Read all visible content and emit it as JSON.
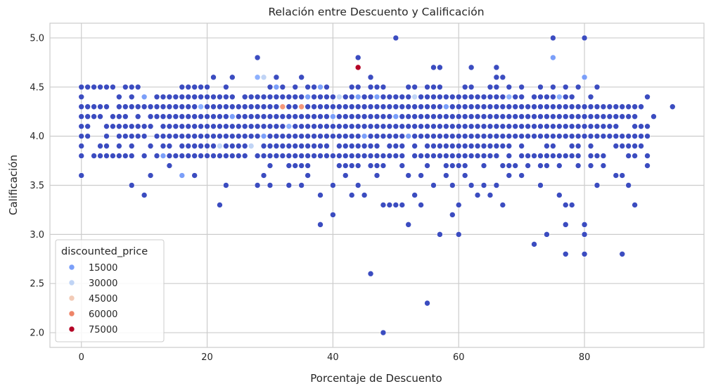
{
  "chart_data": {
    "type": "scatter",
    "title": "Relación entre Descuento y Calificación",
    "xlabel": "Porcentaje de Descuento",
    "ylabel": "Calificación",
    "xlim": [
      -5,
      99
    ],
    "ylim": [
      1.85,
      5.15
    ],
    "xticks": [
      0,
      20,
      40,
      60,
      80
    ],
    "yticks": [
      2.0,
      2.5,
      3.0,
      3.5,
      4.0,
      4.5,
      5.0
    ],
    "grid": true,
    "hue": "discounted_price",
    "colors": {
      "base": "#3b4cc0",
      "mid": "#8db0fe",
      "light": "#c0d4f5",
      "warm": "#f4987a",
      "peak": "#b40426"
    },
    "legend": {
      "title": "discounted_price",
      "placement": "lower-left",
      "entries": [
        {
          "label": "15000",
          "color": "#7b9ff9"
        },
        {
          "label": "30000",
          "color": "#c0d4f5"
        },
        {
          "label": "45000",
          "color": "#f2cbb7"
        },
        {
          "label": "60000",
          "color": "#ee8468"
        },
        {
          "label": "75000",
          "color": "#b40426"
        }
      ]
    },
    "highlights": [
      {
        "x": 44,
        "y": 4.7,
        "color": "#b40426"
      },
      {
        "x": 32,
        "y": 4.3,
        "color": "#f4987a"
      },
      {
        "x": 35,
        "y": 4.3,
        "color": "#f4987a"
      },
      {
        "x": 29,
        "y": 4.6,
        "color": "#c0d4f5"
      },
      {
        "x": 53,
        "y": 4.4,
        "color": "#c0d4f5"
      },
      {
        "x": 41,
        "y": 4.4,
        "color": "#c0d4f5"
      },
      {
        "x": 27,
        "y": 3.9,
        "color": "#c0d4f5"
      },
      {
        "x": 22,
        "y": 3.9,
        "color": "#c0d4f5"
      },
      {
        "x": 28,
        "y": 4.6,
        "color": "#8db0fe"
      },
      {
        "x": 75,
        "y": 4.8,
        "color": "#7b9ff9"
      },
      {
        "x": 76,
        "y": 4.4,
        "color": "#8db0fe"
      },
      {
        "x": 80,
        "y": 4.6,
        "color": "#7b9ff9"
      },
      {
        "x": 68,
        "y": 4.4,
        "color": "#8db0fe"
      },
      {
        "x": 47,
        "y": 4.4,
        "color": "#7b9ff9"
      },
      {
        "x": 38,
        "y": 4.5,
        "color": "#7b9ff9"
      },
      {
        "x": 19,
        "y": 4.3,
        "color": "#8db0fe"
      },
      {
        "x": 44,
        "y": 4.4,
        "color": "#7b9ff9"
      },
      {
        "x": 36,
        "y": 4.4,
        "color": "#7b9ff9"
      },
      {
        "x": 40,
        "y": 4.2,
        "color": "#7b9ff9"
      },
      {
        "x": 50,
        "y": 4.2,
        "color": "#7b9ff9"
      },
      {
        "x": 33,
        "y": 4.1,
        "color": "#8db0fe"
      },
      {
        "x": 13,
        "y": 3.8,
        "color": "#7b9ff9"
      },
      {
        "x": 10,
        "y": 4.4,
        "color": "#7b9ff9"
      },
      {
        "x": 16,
        "y": 3.6,
        "color": "#7b9ff9"
      },
      {
        "x": 52,
        "y": 4.0,
        "color": "#7b9ff9"
      },
      {
        "x": 29,
        "y": 4.0,
        "color": "#7b9ff9"
      },
      {
        "x": 24,
        "y": 4.2,
        "color": "#7b9ff9"
      },
      {
        "x": 45,
        "y": 4.0,
        "color": "#7b9ff9"
      },
      {
        "x": 58,
        "y": 4.3,
        "color": "#7b9ff9"
      },
      {
        "x": 31,
        "y": 4.5,
        "color": "#7b9ff9"
      }
    ],
    "outliers": [
      {
        "x": 0,
        "y": 3.6
      },
      {
        "x": 8,
        "y": 3.5
      },
      {
        "x": 10,
        "y": 3.4
      },
      {
        "x": 11,
        "y": 3.6
      },
      {
        "x": 14,
        "y": 3.7
      },
      {
        "x": 18,
        "y": 3.6
      },
      {
        "x": 22,
        "y": 3.3
      },
      {
        "x": 23,
        "y": 3.5
      },
      {
        "x": 28,
        "y": 4.8
      },
      {
        "x": 28,
        "y": 3.5
      },
      {
        "x": 29,
        "y": 3.6
      },
      {
        "x": 30,
        "y": 3.5
      },
      {
        "x": 33,
        "y": 3.5
      },
      {
        "x": 35,
        "y": 3.5
      },
      {
        "x": 36,
        "y": 3.6
      },
      {
        "x": 38,
        "y": 3.4
      },
      {
        "x": 38,
        "y": 3.1
      },
      {
        "x": 40,
        "y": 3.2
      },
      {
        "x": 40,
        "y": 3.5
      },
      {
        "x": 43,
        "y": 3.4
      },
      {
        "x": 44,
        "y": 4.8
      },
      {
        "x": 44,
        "y": 3.5
      },
      {
        "x": 45,
        "y": 3.4
      },
      {
        "x": 46,
        "y": 2.6
      },
      {
        "x": 46,
        "y": 4.6
      },
      {
        "x": 48,
        "y": 2.0
      },
      {
        "x": 48,
        "y": 3.3
      },
      {
        "x": 49,
        "y": 3.3
      },
      {
        "x": 50,
        "y": 3.3
      },
      {
        "x": 50,
        "y": 5.0
      },
      {
        "x": 51,
        "y": 3.3
      },
      {
        "x": 52,
        "y": 3.1
      },
      {
        "x": 53,
        "y": 3.4
      },
      {
        "x": 54,
        "y": 3.3
      },
      {
        "x": 55,
        "y": 2.3
      },
      {
        "x": 57,
        "y": 3.0
      },
      {
        "x": 59,
        "y": 3.2
      },
      {
        "x": 60,
        "y": 3.0
      },
      {
        "x": 60,
        "y": 3.3
      },
      {
        "x": 62,
        "y": 4.7
      },
      {
        "x": 63,
        "y": 3.4
      },
      {
        "x": 65,
        "y": 3.4
      },
      {
        "x": 67,
        "y": 3.3
      },
      {
        "x": 72,
        "y": 2.9
      },
      {
        "x": 74,
        "y": 3.0
      },
      {
        "x": 75,
        "y": 5.0
      },
      {
        "x": 76,
        "y": 3.4
      },
      {
        "x": 77,
        "y": 2.8
      },
      {
        "x": 77,
        "y": 3.1
      },
      {
        "x": 77,
        "y": 3.3
      },
      {
        "x": 78,
        "y": 3.3
      },
      {
        "x": 80,
        "y": 2.8
      },
      {
        "x": 80,
        "y": 3.1
      },
      {
        "x": 80,
        "y": 3.0
      },
      {
        "x": 80,
        "y": 5.0
      },
      {
        "x": 82,
        "y": 4.5
      },
      {
        "x": 82,
        "y": 3.5
      },
      {
        "x": 85,
        "y": 3.6
      },
      {
        "x": 86,
        "y": 3.6
      },
      {
        "x": 86,
        "y": 2.8
      },
      {
        "x": 87,
        "y": 3.5
      },
      {
        "x": 88,
        "y": 3.3
      },
      {
        "x": 94,
        "y": 4.3
      },
      {
        "x": 91,
        "y": 4.2
      },
      {
        "x": 90,
        "y": 4.4
      },
      {
        "x": 90,
        "y": 4.1
      },
      {
        "x": 90,
        "y": 4.0
      },
      {
        "x": 90,
        "y": 3.8
      },
      {
        "x": 90,
        "y": 3.7
      },
      {
        "x": 89,
        "y": 3.9
      },
      {
        "x": 88,
        "y": 3.9
      },
      {
        "x": 87,
        "y": 3.9
      },
      {
        "x": 86,
        "y": 3.9
      },
      {
        "x": 85,
        "y": 3.9
      },
      {
        "x": 87,
        "y": 4.2
      },
      {
        "x": 88,
        "y": 4.2
      },
      {
        "x": 2,
        "y": 4.5
      },
      {
        "x": 8,
        "y": 4.5
      },
      {
        "x": 21,
        "y": 4.6
      },
      {
        "x": 24,
        "y": 4.6
      },
      {
        "x": 31,
        "y": 4.6
      },
      {
        "x": 35,
        "y": 4.6
      },
      {
        "x": 56,
        "y": 4.7
      },
      {
        "x": 57,
        "y": 4.7
      },
      {
        "x": 66,
        "y": 4.7
      },
      {
        "x": 66,
        "y": 4.6
      },
      {
        "x": 67,
        "y": 4.6
      },
      {
        "x": 13,
        "y": 3.9
      },
      {
        "x": 6,
        "y": 3.8
      },
      {
        "x": 8,
        "y": 3.8
      },
      {
        "x": 6,
        "y": 4.0
      },
      {
        "x": 9,
        "y": 4.2
      },
      {
        "x": 83,
        "y": 3.7
      },
      {
        "x": 83,
        "y": 3.8
      },
      {
        "x": 85,
        "y": 4.0
      },
      {
        "x": 86,
        "y": 4.0
      },
      {
        "x": 73,
        "y": 3.7
      },
      {
        "x": 73,
        "y": 3.5
      },
      {
        "x": 70,
        "y": 3.6
      },
      {
        "x": 61,
        "y": 3.6
      },
      {
        "x": 68,
        "y": 3.6
      },
      {
        "x": 20,
        "y": 3.9
      },
      {
        "x": 21,
        "y": 3.8
      },
      {
        "x": 26,
        "y": 3.8
      },
      {
        "x": 33,
        "y": 3.7
      },
      {
        "x": 34,
        "y": 3.7
      },
      {
        "x": 42,
        "y": 3.6
      },
      {
        "x": 47,
        "y": 3.6
      },
      {
        "x": 52,
        "y": 3.6
      },
      {
        "x": 54,
        "y": 3.6
      },
      {
        "x": 58,
        "y": 3.6
      },
      {
        "x": 62,
        "y": 3.5
      },
      {
        "x": 64,
        "y": 3.5
      },
      {
        "x": 66,
        "y": 3.5
      },
      {
        "x": 56,
        "y": 3.5
      },
      {
        "x": 59,
        "y": 3.5
      }
    ]
  }
}
